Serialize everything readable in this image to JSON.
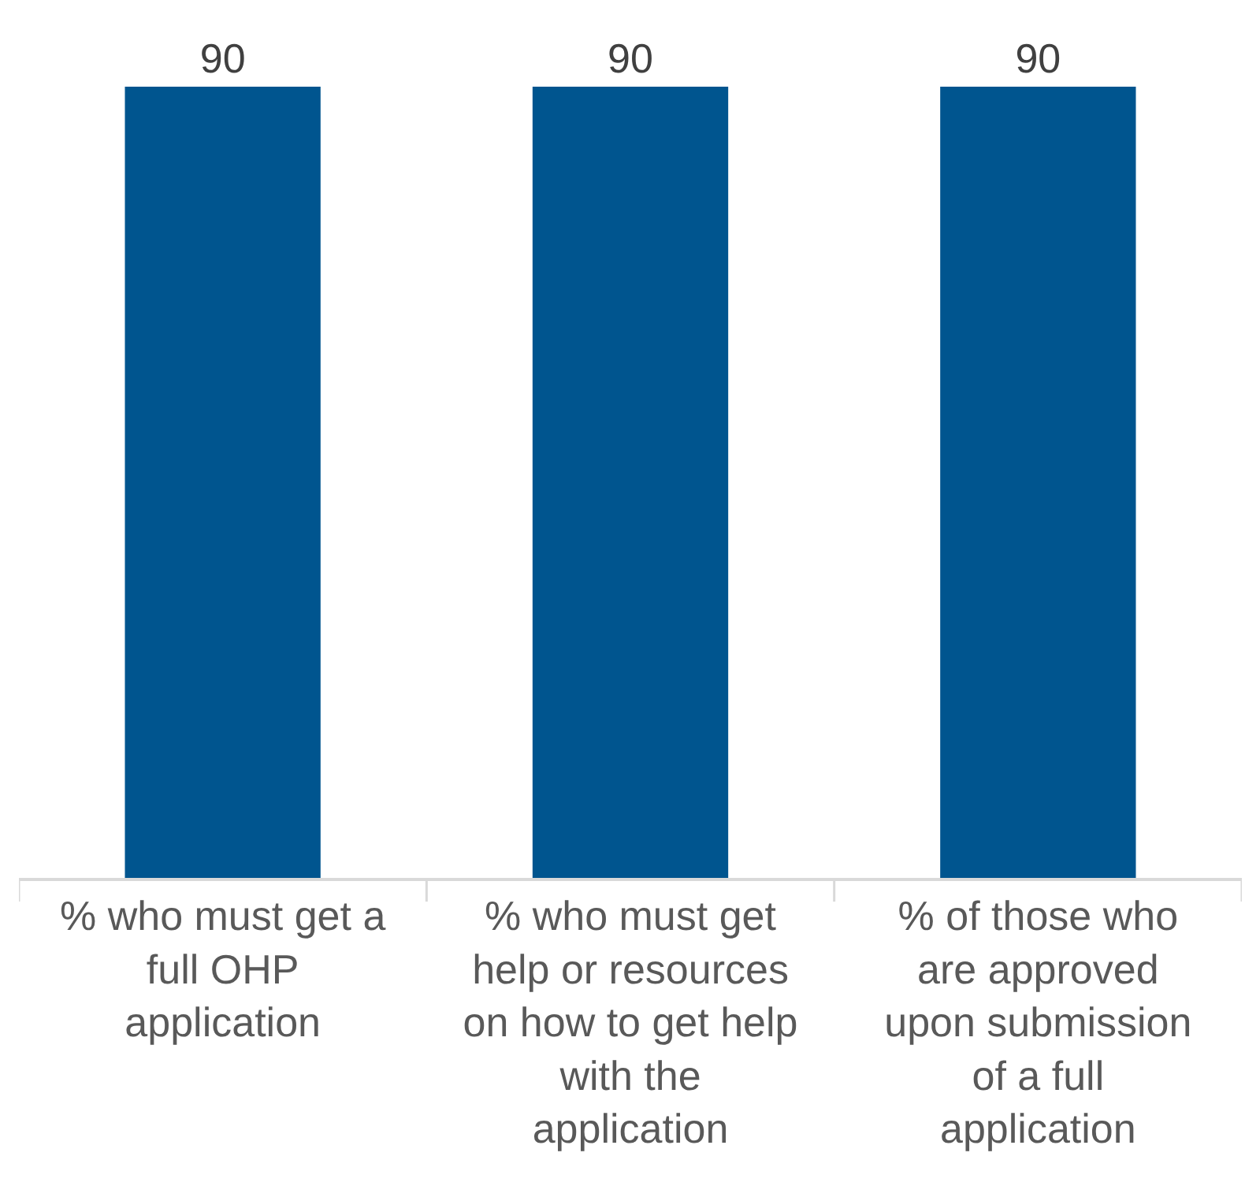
{
  "chart_data": {
    "type": "bar",
    "categories": [
      "% who must get a\nfull OHP\napplication",
      "% who must get\nhelp or resources\non how to get help\nwith the\napplication",
      "% of those who\nare approved\nupon submission\nof a full\napplication"
    ],
    "values": [
      90,
      90,
      90
    ],
    "color": "#00558f",
    "ylim": [
      0,
      90
    ],
    "data_labels": true,
    "tick_labels": "x"
  }
}
